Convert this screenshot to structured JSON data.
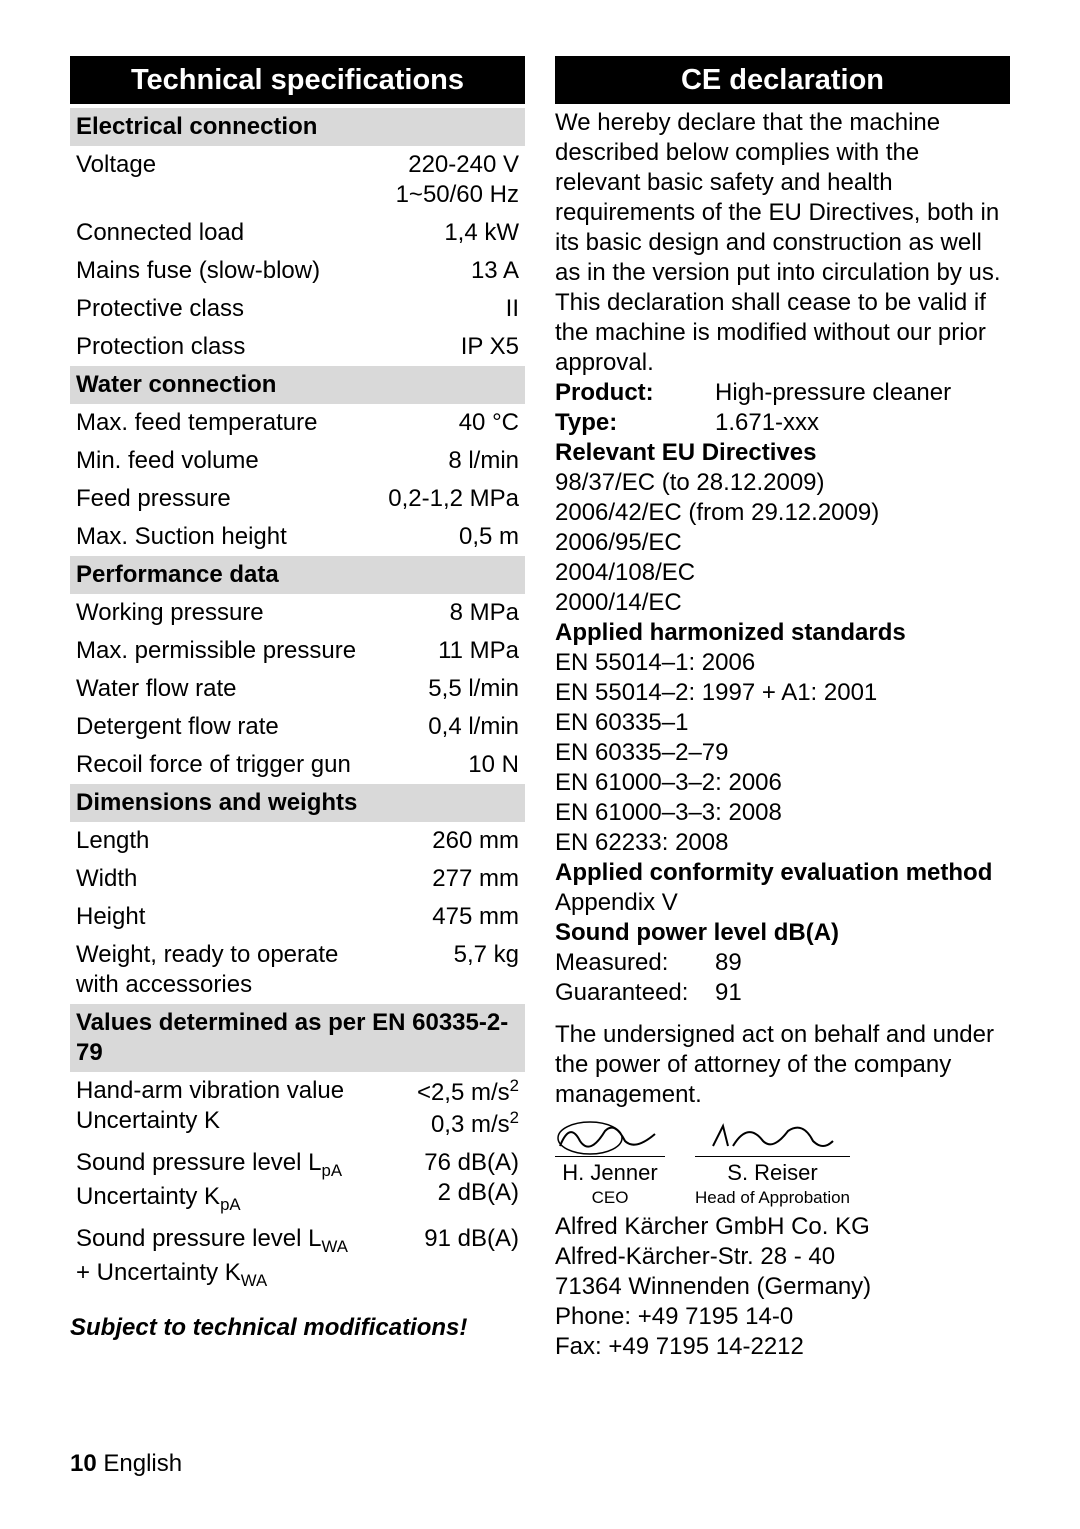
{
  "left": {
    "title": "Technical specifications",
    "groups": [
      {
        "header": "Electrical connection",
        "rows": [
          {
            "label": "Voltage",
            "value": "220-240 V\n1~50/60 Hz"
          },
          {
            "label": "Connected load",
            "value": "1,4 kW"
          },
          {
            "label": "Mains fuse (slow-blow)",
            "value": "13 A"
          },
          {
            "label": "Protective class",
            "value": "II"
          },
          {
            "label": "Protection class",
            "value": "IP X5"
          }
        ]
      },
      {
        "header": "Water connection",
        "rows": [
          {
            "label": "Max. feed temperature",
            "value": "40 °C"
          },
          {
            "label": "Min. feed volume",
            "value": "8 l/min"
          },
          {
            "label": "Feed pressure",
            "value": "0,2-1,2 MPa"
          },
          {
            "label": "Max. Suction height",
            "value": "0,5 m"
          }
        ]
      },
      {
        "header": "Performance data",
        "rows": [
          {
            "label": "Working pressure",
            "value": "8 MPa"
          },
          {
            "label": "Max. permissible pressure",
            "value": "11 MPa"
          },
          {
            "label": "Water flow rate",
            "value": "5,5 l/min"
          },
          {
            "label": "Detergent flow rate",
            "value": "0,4 l/min"
          },
          {
            "label": "Recoil force of trigger gun",
            "value": "10 N"
          }
        ]
      },
      {
        "header": "Dimensions and weights",
        "rows": [
          {
            "label": "Length",
            "value": "260 mm"
          },
          {
            "label": "Width",
            "value": "277 mm"
          },
          {
            "label": "Height",
            "value": "475 mm"
          },
          {
            "label": "Weight, ready to operate with accessories",
            "value": "5,7 kg"
          }
        ]
      },
      {
        "header": "Values determined as per EN 60335-2-79",
        "rows": [
          {
            "label_html": "Hand-arm vibration value<br>Uncertainty K",
            "value_html": "&lt;2,5 m/s<sup>2</sup><br>0,3 m/s<sup>2</sup>"
          },
          {
            "label_html": "Sound pressure level L<sub>pA</sub><br>Uncertainty K<sub>pA</sub>",
            "value_html": "76 dB(A)<br>2 dB(A)"
          },
          {
            "label_html": "Sound pressure level L<sub>WA</sub><br>+ Uncertainty K<sub>WA</sub>",
            "value_html": "91 dB(A)"
          }
        ]
      }
    ],
    "note": "Subject to technical modifications!"
  },
  "right": {
    "title": "CE declaration",
    "intro": "We hereby declare that the machine described below complies with the relevant basic safety and health requirements of the EU Directives, both in its basic design and construction as well as in the version put into circulation by us. This declaration shall cease to be valid if the machine is modified without our prior approval.",
    "product_label": "Product:",
    "product_value": "High-pressure cleaner",
    "type_label": "Type:",
    "type_value": "1.671-xxx",
    "directives_label": "Relevant EU Directives",
    "directives": [
      "98/37/EC (to 28.12.2009)",
      "2006/42/EC (from 29.12.2009)",
      "2006/95/EC",
      "2004/108/EC",
      "2000/14/EC"
    ],
    "standards_label": "Applied harmonized standards",
    "standards": [
      "EN 55014–1: 2006",
      "EN 55014–2: 1997 + A1: 2001",
      "EN 60335–1",
      "EN 60335–2–79",
      "EN 61000–3–2: 2006",
      "EN 61000–3–3: 2008",
      "EN 62233: 2008"
    ],
    "conformity_label": "Applied conformity evaluation method",
    "conformity_value": "Appendix V",
    "sound_label": "Sound power level dB(A)",
    "sound_measured_label": "Measured:",
    "sound_measured_value": "89",
    "sound_guaranteed_label": "Guaranteed:",
    "sound_guaranteed_value": "91",
    "attorney": "The undersigned act on behalf and under the power of attorney of the company management.",
    "sig1_name": "H. Jenner",
    "sig1_role": "CEO",
    "sig2_name": "S. Reiser",
    "sig2_role": "Head of Approbation",
    "company": [
      "Alfred Kärcher GmbH Co. KG",
      "Alfred-Kärcher-Str. 28 - 40",
      "71364 Winnenden (Germany)",
      "Phone: +49 7195 14-0",
      "Fax: +49 7195 14-2212"
    ]
  },
  "footer": {
    "page": "10",
    "lang": "English"
  },
  "colors": {
    "header_bg": "#d9d9d9",
    "title_bg": "#000000",
    "title_fg": "#ffffff"
  }
}
